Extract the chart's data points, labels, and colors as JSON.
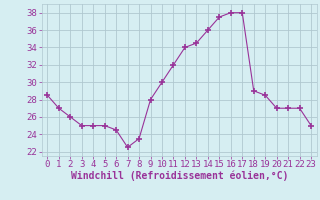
{
  "x": [
    0,
    1,
    2,
    3,
    4,
    5,
    6,
    7,
    8,
    9,
    10,
    11,
    12,
    13,
    14,
    15,
    16,
    17,
    18,
    19,
    20,
    21,
    22,
    23
  ],
  "y": [
    28.5,
    27.0,
    26.0,
    25.0,
    25.0,
    25.0,
    24.5,
    22.5,
    23.5,
    28.0,
    30.0,
    32.0,
    34.0,
    34.5,
    36.0,
    37.5,
    38.0,
    38.0,
    29.0,
    28.5,
    27.0,
    27.0,
    27.0,
    25.0
  ],
  "line_color": "#993399",
  "marker": "+",
  "marker_size": 4,
  "bg_color": "#d6eef2",
  "grid_color": "#b0c8d0",
  "xlabel": "Windchill (Refroidissement éolien,°C)",
  "xlabel_color": "#993399",
  "xlabel_fontsize": 7,
  "ylabel_ticks": [
    22,
    24,
    26,
    28,
    30,
    32,
    34,
    36,
    38
  ],
  "xlim": [
    -0.5,
    23.5
  ],
  "ylim": [
    21.5,
    39.0
  ],
  "tick_color": "#993399",
  "tick_fontsize": 6.5
}
